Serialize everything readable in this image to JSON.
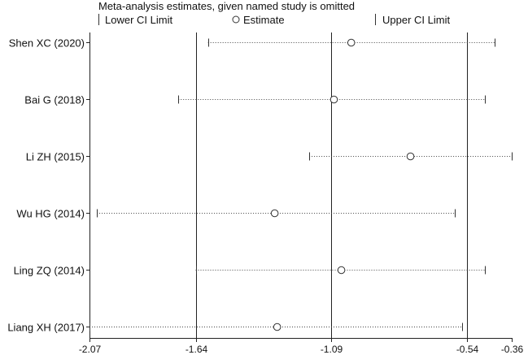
{
  "chart_data": {
    "type": "forest",
    "title": "Meta-analysis estimates, given named study is omitted",
    "legend": [
      {
        "symbol": "bar",
        "label": "Lower CI Limit"
      },
      {
        "symbol": "circle",
        "label": "Estimate"
      },
      {
        "symbol": "bar",
        "label": "Upper CI Limit"
      }
    ],
    "xlim": [
      -2.07,
      -0.36
    ],
    "xticks": [
      -2.07,
      -1.64,
      -1.09,
      -0.54,
      -0.36
    ],
    "xtick_labels": [
      "-2.07",
      "-1.64",
      "-1.09",
      "-0.54",
      "-0.36"
    ],
    "reference_lines": [
      -1.64,
      -1.09,
      -0.54
    ],
    "studies": [
      {
        "name": "Shen XC (2020)",
        "lower": -1.59,
        "estimate": -1.01,
        "upper": -0.43
      },
      {
        "name": "Bai G (2018)",
        "lower": -1.71,
        "estimate": -1.08,
        "upper": -0.47
      },
      {
        "name": "Li ZH (2015)",
        "lower": -1.18,
        "estimate": -0.77,
        "upper": -0.36
      },
      {
        "name": "Wu HG (2014)",
        "lower": -2.04,
        "estimate": -1.32,
        "upper": -0.59
      },
      {
        "name": "Ling ZQ (2014)",
        "lower": -1.64,
        "estimate": -1.05,
        "upper": -0.47
      },
      {
        "name": "Liang XH (2017)",
        "lower": -2.07,
        "estimate": -1.31,
        "upper": -0.56
      }
    ]
  }
}
